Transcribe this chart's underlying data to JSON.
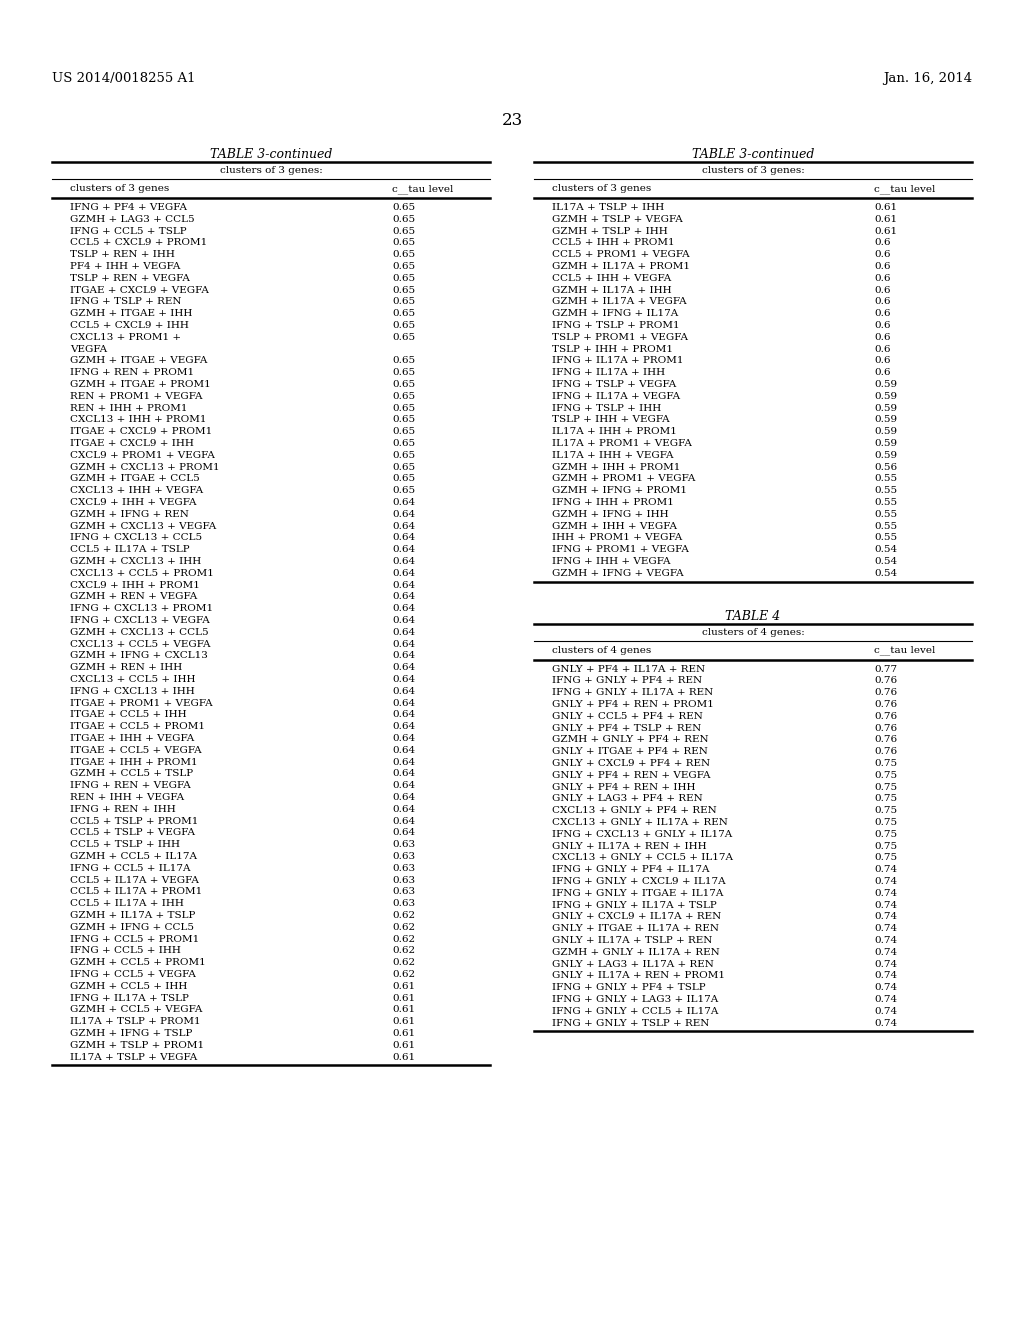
{
  "header_left": "US 2014/0018255 A1",
  "header_right": "Jan. 16, 2014",
  "page_number": "23",
  "table1_title": "TABLE 3-continued",
  "table1_subtitle": "clusters of 3 genes:",
  "table1_col1": "clusters of 3 genes",
  "table1_col2": "c__tau level",
  "table1_data": [
    [
      "IFNG + PF4 + VEGFA",
      "0.65"
    ],
    [
      "GZMH + LAG3 + CCL5",
      "0.65"
    ],
    [
      "IFNG + CCL5 + TSLP",
      "0.65"
    ],
    [
      "CCL5 + CXCL9 + PROM1",
      "0.65"
    ],
    [
      "TSLP + REN + IHH",
      "0.65"
    ],
    [
      "PF4 + IHH + VEGFA",
      "0.65"
    ],
    [
      "TSLP + REN + VEGFA",
      "0.65"
    ],
    [
      "ITGAE + CXCL9 + VEGFA",
      "0.65"
    ],
    [
      "IFNG + TSLP + REN",
      "0.65"
    ],
    [
      "GZMH + ITGAE + IHH",
      "0.65"
    ],
    [
      "CCL5 + CXCL9 + IHH",
      "0.65"
    ],
    [
      "CXCL13 + PROM1 +",
      "0.65"
    ],
    [
      "VEGFA",
      ""
    ],
    [
      "GZMH + ITGAE + VEGFA",
      "0.65"
    ],
    [
      "IFNG + REN + PROM1",
      "0.65"
    ],
    [
      "GZMH + ITGAE + PROM1",
      "0.65"
    ],
    [
      "REN + PROM1 + VEGFA",
      "0.65"
    ],
    [
      "REN + IHH + PROM1",
      "0.65"
    ],
    [
      "CXCL13 + IHH + PROM1",
      "0.65"
    ],
    [
      "ITGAE + CXCL9 + PROM1",
      "0.65"
    ],
    [
      "ITGAE + CXCL9 + IHH",
      "0.65"
    ],
    [
      "CXCL9 + PROM1 + VEGFA",
      "0.65"
    ],
    [
      "GZMH + CXCL13 + PROM1",
      "0.65"
    ],
    [
      "GZMH + ITGAE + CCL5",
      "0.65"
    ],
    [
      "CXCL13 + IHH + VEGFA",
      "0.65"
    ],
    [
      "CXCL9 + IHH + VEGFA",
      "0.64"
    ],
    [
      "GZMH + IFNG + REN",
      "0.64"
    ],
    [
      "GZMH + CXCL13 + VEGFA",
      "0.64"
    ],
    [
      "IFNG + CXCL13 + CCL5",
      "0.64"
    ],
    [
      "CCL5 + IL17A + TSLP",
      "0.64"
    ],
    [
      "GZMH + CXCL13 + IHH",
      "0.64"
    ],
    [
      "CXCL13 + CCL5 + PROM1",
      "0.64"
    ],
    [
      "CXCL9 + IHH + PROM1",
      "0.64"
    ],
    [
      "GZMH + REN + VEGFA",
      "0.64"
    ],
    [
      "IFNG + CXCL13 + PROM1",
      "0.64"
    ],
    [
      "IFNG + CXCL13 + VEGFA",
      "0.64"
    ],
    [
      "GZMH + CXCL13 + CCL5",
      "0.64"
    ],
    [
      "CXCL13 + CCL5 + VEGFA",
      "0.64"
    ],
    [
      "GZMH + IFNG + CXCL13",
      "0.64"
    ],
    [
      "GZMH + REN + IHH",
      "0.64"
    ],
    [
      "CXCL13 + CCL5 + IHH",
      "0.64"
    ],
    [
      "IFNG + CXCL13 + IHH",
      "0.64"
    ],
    [
      "ITGAE + PROM1 + VEGFA",
      "0.64"
    ],
    [
      "ITGAE + CCL5 + IHH",
      "0.64"
    ],
    [
      "ITGAE + CCL5 + PROM1",
      "0.64"
    ],
    [
      "ITGAE + IHH + VEGFA",
      "0.64"
    ],
    [
      "ITGAE + CCL5 + VEGFA",
      "0.64"
    ],
    [
      "ITGAE + IHH + PROM1",
      "0.64"
    ],
    [
      "GZMH + CCL5 + TSLP",
      "0.64"
    ],
    [
      "IFNG + REN + VEGFA",
      "0.64"
    ],
    [
      "REN + IHH + VEGFA",
      "0.64"
    ],
    [
      "IFNG + REN + IHH",
      "0.64"
    ],
    [
      "CCL5 + TSLP + PROM1",
      "0.64"
    ],
    [
      "CCL5 + TSLP + VEGFA",
      "0.64"
    ],
    [
      "CCL5 + TSLP + IHH",
      "0.63"
    ],
    [
      "GZMH + CCL5 + IL17A",
      "0.63"
    ],
    [
      "IFNG + CCL5 + IL17A",
      "0.63"
    ],
    [
      "CCL5 + IL17A + VEGFA",
      "0.63"
    ],
    [
      "CCL5 + IL17A + PROM1",
      "0.63"
    ],
    [
      "CCL5 + IL17A + IHH",
      "0.63"
    ],
    [
      "GZMH + IL17A + TSLP",
      "0.62"
    ],
    [
      "GZMH + IFNG + CCL5",
      "0.62"
    ],
    [
      "IFNG + CCL5 + PROM1",
      "0.62"
    ],
    [
      "IFNG + CCL5 + IHH",
      "0.62"
    ],
    [
      "GZMH + CCL5 + PROM1",
      "0.62"
    ],
    [
      "IFNG + CCL5 + VEGFA",
      "0.62"
    ],
    [
      "GZMH + CCL5 + IHH",
      "0.61"
    ],
    [
      "IFNG + IL17A + TSLP",
      "0.61"
    ],
    [
      "GZMH + CCL5 + VEGFA",
      "0.61"
    ],
    [
      "IL17A + TSLP + PROM1",
      "0.61"
    ],
    [
      "GZMH + IFNG + TSLP",
      "0.61"
    ],
    [
      "GZMH + TSLP + PROM1",
      "0.61"
    ],
    [
      "IL17A + TSLP + VEGFA",
      "0.61"
    ]
  ],
  "table2_title": "TABLE 3-continued",
  "table2_subtitle": "clusters of 3 genes:",
  "table2_col1": "clusters of 3 genes",
  "table2_col2": "c__tau level",
  "table2_data": [
    [
      "IL17A + TSLP + IHH",
      "0.61"
    ],
    [
      "GZMH + TSLP + VEGFA",
      "0.61"
    ],
    [
      "GZMH + TSLP + IHH",
      "0.61"
    ],
    [
      "CCL5 + IHH + PROM1",
      "0.6"
    ],
    [
      "CCL5 + PROM1 + VEGFA",
      "0.6"
    ],
    [
      "GZMH + IL17A + PROM1",
      "0.6"
    ],
    [
      "CCL5 + IHH + VEGFA",
      "0.6"
    ],
    [
      "GZMH + IL17A + IHH",
      "0.6"
    ],
    [
      "GZMH + IL17A + VEGFA",
      "0.6"
    ],
    [
      "GZMH + IFNG + IL17A",
      "0.6"
    ],
    [
      "IFNG + TSLP + PROM1",
      "0.6"
    ],
    [
      "TSLP + PROM1 + VEGFA",
      "0.6"
    ],
    [
      "TSLP + IHH + PROM1",
      "0.6"
    ],
    [
      "IFNG + IL17A + PROM1",
      "0.6"
    ],
    [
      "IFNG + IL17A + IHH",
      "0.6"
    ],
    [
      "IFNG + TSLP + VEGFA",
      "0.59"
    ],
    [
      "IFNG + IL17A + VEGFA",
      "0.59"
    ],
    [
      "IFNG + TSLP + IHH",
      "0.59"
    ],
    [
      "TSLP + IHH + VEGFA",
      "0.59"
    ],
    [
      "IL17A + IHH + PROM1",
      "0.59"
    ],
    [
      "IL17A + PROM1 + VEGFA",
      "0.59"
    ],
    [
      "IL17A + IHH + VEGFA",
      "0.59"
    ],
    [
      "GZMH + IHH + PROM1",
      "0.56"
    ],
    [
      "GZMH + PROM1 + VEGFA",
      "0.55"
    ],
    [
      "GZMH + IFNG + PROM1",
      "0.55"
    ],
    [
      "IFNG + IHH + PROM1",
      "0.55"
    ],
    [
      "GZMH + IFNG + IHH",
      "0.55"
    ],
    [
      "GZMH + IHH + VEGFA",
      "0.55"
    ],
    [
      "IHH + PROM1 + VEGFA",
      "0.55"
    ],
    [
      "IFNG + PROM1 + VEGFA",
      "0.54"
    ],
    [
      "IFNG + IHH + VEGFA",
      "0.54"
    ],
    [
      "GZMH + IFNG + VEGFA",
      "0.54"
    ]
  ],
  "table3_title": "TABLE 4",
  "table3_subtitle": "clusters of 4 genes:",
  "table3_col1": "clusters of 4 genes",
  "table3_col2": "c__tau level",
  "table3_data": [
    [
      "GNLY + PF4 + IL17A + REN",
      "0.77"
    ],
    [
      "IFNG + GNLY + PF4 + REN",
      "0.76"
    ],
    [
      "IFNG + GNLY + IL17A + REN",
      "0.76"
    ],
    [
      "GNLY + PF4 + REN + PROM1",
      "0.76"
    ],
    [
      "GNLY + CCL5 + PF4 + REN",
      "0.76"
    ],
    [
      "GNLY + PF4 + TSLP + REN",
      "0.76"
    ],
    [
      "GZMH + GNLY + PF4 + REN",
      "0.76"
    ],
    [
      "GNLY + ITGAE + PF4 + REN",
      "0.76"
    ],
    [
      "GNLY + CXCL9 + PF4 + REN",
      "0.75"
    ],
    [
      "GNLY + PF4 + REN + VEGFA",
      "0.75"
    ],
    [
      "GNLY + PF4 + REN + IHH",
      "0.75"
    ],
    [
      "GNLY + LAG3 + PF4 + REN",
      "0.75"
    ],
    [
      "CXCL13 + GNLY + PF4 + REN",
      "0.75"
    ],
    [
      "CXCL13 + GNLY + IL17A + REN",
      "0.75"
    ],
    [
      "IFNG + CXCL13 + GNLY + IL17A",
      "0.75"
    ],
    [
      "GNLY + IL17A + REN + IHH",
      "0.75"
    ],
    [
      "CXCL13 + GNLY + CCL5 + IL17A",
      "0.75"
    ],
    [
      "IFNG + GNLY + PF4 + IL17A",
      "0.74"
    ],
    [
      "IFNG + GNLY + CXCL9 + IL17A",
      "0.74"
    ],
    [
      "IFNG + GNLY + ITGAE + IL17A",
      "0.74"
    ],
    [
      "IFNG + GNLY + IL17A + TSLP",
      "0.74"
    ],
    [
      "GNLY + CXCL9 + IL17A + REN",
      "0.74"
    ],
    [
      "GNLY + ITGAE + IL17A + REN",
      "0.74"
    ],
    [
      "GNLY + IL17A + TSLP + REN",
      "0.74"
    ],
    [
      "GZMH + GNLY + IL17A + REN",
      "0.74"
    ],
    [
      "GNLY + LAG3 + IL17A + REN",
      "0.74"
    ],
    [
      "GNLY + IL17A + REN + PROM1",
      "0.74"
    ],
    [
      "IFNG + GNLY + PF4 + TSLP",
      "0.74"
    ],
    [
      "IFNG + GNLY + LAG3 + IL17A",
      "0.74"
    ],
    [
      "IFNG + GNLY + CCL5 + IL17A",
      "0.74"
    ],
    [
      "IFNG + GNLY + TSLP + REN",
      "0.74"
    ]
  ]
}
